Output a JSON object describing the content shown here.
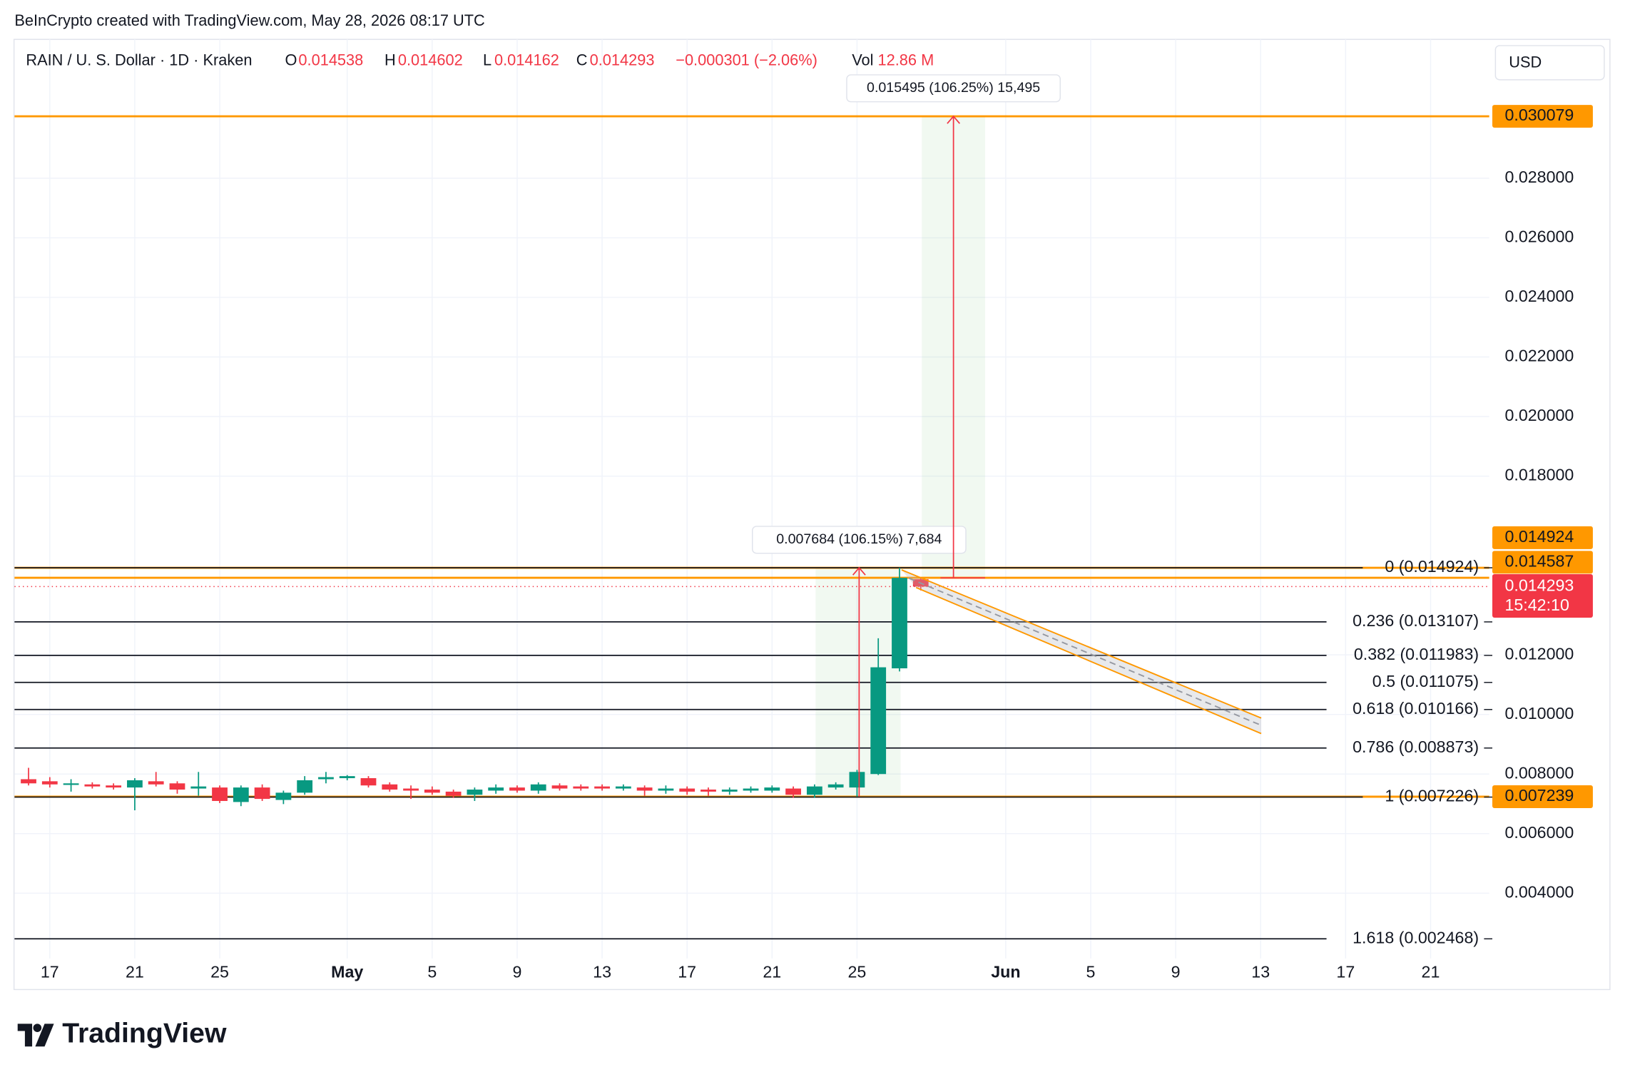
{
  "chart_data": {
    "type": "candlestick",
    "attribution": "BeInCrypto created with TradingView.com, May 28, 2026 08:17 UTC",
    "symbol": "RAIN / U. S. Dollar · 1D · Kraken",
    "ohlc_labels": [
      "O",
      "H",
      "L",
      "C"
    ],
    "change": "−0.000301 (−2.06%)",
    "volume_label": "Vol",
    "volume": "12.86 M",
    "currency": "USD",
    "countdown": "15:42:10",
    "branding": "TradingView",
    "up_color": "#089981",
    "down_color": "#f23645",
    "grid": true,
    "xlim": [
      -1.66,
      67.76
    ],
    "ylim": [
      0.001809,
      0.032661
    ],
    "xticks": [
      {
        "value": 0,
        "label": "17"
      },
      {
        "value": 4,
        "label": "21"
      },
      {
        "value": 8,
        "label": "25"
      },
      {
        "value": 14,
        "label": "May"
      },
      {
        "value": 18,
        "label": "5"
      },
      {
        "value": 22,
        "label": "9"
      },
      {
        "value": 26,
        "label": "13"
      },
      {
        "value": 30,
        "label": "17"
      },
      {
        "value": 34,
        "label": "21"
      },
      {
        "value": 38,
        "label": "25"
      },
      {
        "value": 45,
        "label": "Jun"
      },
      {
        "value": 49,
        "label": "5"
      },
      {
        "value": 53,
        "label": "9"
      },
      {
        "value": 57,
        "label": "13"
      },
      {
        "value": 61,
        "label": "17"
      },
      {
        "value": 65,
        "label": "21"
      }
    ],
    "yticks": [
      {
        "value": 0.004,
        "label": "0.004000"
      },
      {
        "value": 0.006,
        "label": "0.006000"
      },
      {
        "value": 0.008,
        "label": "0.008000"
      },
      {
        "value": 0.01,
        "label": "0.010000"
      },
      {
        "value": 0.012,
        "label": "0.012000"
      },
      {
        "value": 0.018,
        "label": "0.018000"
      },
      {
        "value": 0.02,
        "label": "0.020000"
      },
      {
        "value": 0.022,
        "label": "0.022000"
      },
      {
        "value": 0.024,
        "label": "0.024000"
      },
      {
        "value": 0.026,
        "label": "0.026000"
      },
      {
        "value": 0.028,
        "label": "0.028000"
      }
    ],
    "x": [
      -1,
      0,
      1,
      2,
      3,
      4,
      5,
      6,
      7,
      8,
      9,
      10,
      11,
      12,
      13,
      14,
      15,
      16,
      17,
      18,
      19,
      20,
      21,
      22,
      23,
      24,
      25,
      26,
      27,
      28,
      29,
      30,
      31,
      32,
      33,
      34,
      35,
      36,
      37,
      38,
      39,
      40,
      41
    ],
    "open": [
      0.007826,
      0.007757,
      0.007652,
      0.007652,
      0.007617,
      0.007548,
      0.007757,
      0.007687,
      0.007513,
      0.007548,
      0.007061,
      0.007548,
      0.00713,
      0.007374,
      0.007826,
      0.007861,
      0.007861,
      0.007652,
      0.007513,
      0.007478,
      0.007409,
      0.007304,
      0.007443,
      0.007548,
      0.007443,
      0.007617,
      0.007583,
      0.007583,
      0.007513,
      0.007548,
      0.007443,
      0.007513,
      0.007478,
      0.007409,
      0.007443,
      0.007443,
      0.007513,
      0.007304,
      0.007548,
      0.007548,
      0.008,
      0.011548,
      0.014538
    ],
    "high": [
      0.008209,
      0.007896,
      0.007826,
      0.007722,
      0.007687,
      0.007861,
      0.00807,
      0.007757,
      0.00807,
      0.007617,
      0.007617,
      0.007652,
      0.007443,
      0.00793,
      0.00807,
      0.007965,
      0.00793,
      0.007722,
      0.007617,
      0.007583,
      0.007478,
      0.007548,
      0.007652,
      0.007617,
      0.007722,
      0.007687,
      0.007652,
      0.007652,
      0.007652,
      0.007617,
      0.007617,
      0.007583,
      0.007548,
      0.007548,
      0.007583,
      0.007617,
      0.007583,
      0.007652,
      0.007722,
      0.008139,
      0.012557,
      0.014924,
      0.014602
    ],
    "low": [
      0.007617,
      0.007548,
      0.007409,
      0.007513,
      0.007478,
      0.006783,
      0.007583,
      0.007339,
      0.00727,
      0.007026,
      0.006922,
      0.007096,
      0.006991,
      0.007304,
      0.007687,
      0.007791,
      0.007548,
      0.007409,
      0.007165,
      0.007304,
      0.0072,
      0.007096,
      0.007339,
      0.007374,
      0.007339,
      0.007443,
      0.007443,
      0.007443,
      0.007443,
      0.00727,
      0.007339,
      0.007304,
      0.00727,
      0.007304,
      0.007374,
      0.007374,
      0.0072,
      0.0072,
      0.007478,
      0.00724,
      0.007965,
      0.011443,
      0.014162
    ],
    "close": [
      0.007687,
      0.007652,
      0.007687,
      0.007583,
      0.007548,
      0.007791,
      0.007652,
      0.007478,
      0.007583,
      0.007096,
      0.007548,
      0.007165,
      0.007374,
      0.007791,
      0.007896,
      0.00793,
      0.007617,
      0.007478,
      0.007443,
      0.007374,
      0.00727,
      0.007478,
      0.007548,
      0.007443,
      0.007652,
      0.007513,
      0.007513,
      0.007513,
      0.007583,
      0.007443,
      0.007513,
      0.007409,
      0.007409,
      0.007478,
      0.007513,
      0.007548,
      0.007304,
      0.007583,
      0.007652,
      0.00807,
      0.011583,
      0.014587,
      0.014293
    ],
    "price_lines": [
      {
        "value": 0.030079,
        "color": "#ff9800"
      },
      {
        "value": 0.014924,
        "color": "#ff9800"
      },
      {
        "value": 0.014587,
        "color": "#ff9800"
      },
      {
        "value": 0.007239,
        "color": "#ff9800"
      }
    ],
    "fib_levels": [
      {
        "label": "0 (0.014924)",
        "value": 0.014924
      },
      {
        "label": "0.236 (0.013107)",
        "value": 0.013107
      },
      {
        "label": "0.382 (0.011983)",
        "value": 0.011983
      },
      {
        "label": "0.5 (0.011075)",
        "value": 0.011075
      },
      {
        "label": "0.618 (0.010166)",
        "value": 0.010166
      },
      {
        "label": "0.786 (0.008873)",
        "value": 0.008873
      },
      {
        "label": "1 (0.007226)",
        "value": 0.007226
      },
      {
        "label": "1.618 (0.002468)",
        "value": 0.002468
      }
    ],
    "measurements": [
      {
        "label": "0.007684 (106.15%) 7,684",
        "from": 0.00724,
        "to": 0.014924
      },
      {
        "label": "0.015495 (106.25%) 15,495",
        "from": 0.014584,
        "to": 0.030079
      }
    ]
  }
}
